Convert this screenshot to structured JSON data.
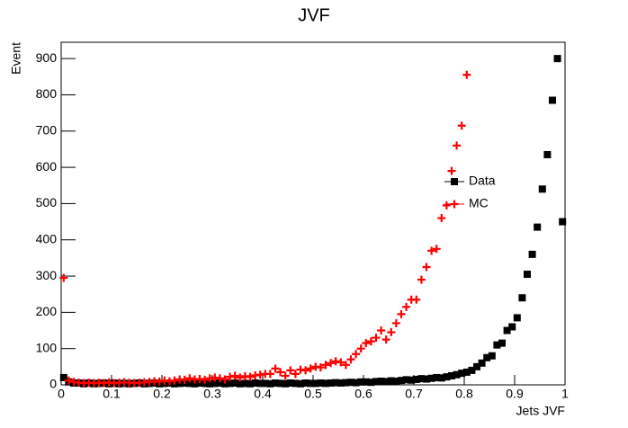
{
  "chart_data": {
    "type": "scatter",
    "title": "JVF",
    "x_label": "Jets JVF",
    "y_label": "Event",
    "xlim": [
      0,
      1
    ],
    "ylim": [
      0,
      945
    ],
    "xticks": [
      0,
      0.1,
      0.2,
      0.3,
      0.4,
      0.5,
      0.6,
      0.7,
      0.8,
      0.9,
      1
    ],
    "yticks": [
      0,
      100,
      200,
      300,
      400,
      500,
      600,
      700,
      800,
      900
    ],
    "x": [
      0.005,
      0.015,
      0.025,
      0.035,
      0.045,
      0.055,
      0.065,
      0.075,
      0.085,
      0.095,
      0.105,
      0.115,
      0.125,
      0.135,
      0.145,
      0.155,
      0.165,
      0.175,
      0.185,
      0.195,
      0.205,
      0.215,
      0.225,
      0.235,
      0.245,
      0.255,
      0.265,
      0.275,
      0.285,
      0.295,
      0.305,
      0.315,
      0.325,
      0.335,
      0.345,
      0.355,
      0.365,
      0.375,
      0.385,
      0.395,
      0.405,
      0.415,
      0.425,
      0.435,
      0.445,
      0.455,
      0.465,
      0.475,
      0.485,
      0.495,
      0.505,
      0.515,
      0.525,
      0.535,
      0.545,
      0.555,
      0.565,
      0.575,
      0.585,
      0.595,
      0.605,
      0.615,
      0.625,
      0.635,
      0.645,
      0.655,
      0.665,
      0.675,
      0.685,
      0.695,
      0.705,
      0.715,
      0.725,
      0.735,
      0.745,
      0.755,
      0.765,
      0.775,
      0.785,
      0.795,
      0.805,
      0.815,
      0.825,
      0.835,
      0.845,
      0.855,
      0.865,
      0.875,
      0.885,
      0.895,
      0.905,
      0.915,
      0.925,
      0.935,
      0.945,
      0.955,
      0.965,
      0.975,
      0.985,
      0.995
    ],
    "series": [
      {
        "name": "Data",
        "color": "#000000",
        "marker": "square",
        "values": [
          20,
          8,
          5,
          5,
          3,
          5,
          3,
          4,
          5,
          3,
          5,
          3,
          4,
          3,
          4,
          5,
          3,
          4,
          5,
          3,
          4,
          5,
          3,
          4,
          5,
          4,
          3,
          5,
          4,
          3,
          4,
          5,
          3,
          4,
          5,
          3,
          4,
          3,
          5,
          4,
          4,
          3,
          5,
          4,
          3,
          5,
          4,
          3,
          5,
          4,
          4,
          5,
          4,
          5,
          6,
          5,
          6,
          7,
          6,
          8,
          8,
          7,
          9,
          10,
          9,
          11,
          10,
          12,
          14,
          13,
          15,
          17,
          16,
          18,
          20,
          19,
          22,
          25,
          28,
          32,
          35,
          40,
          50,
          60,
          75,
          80,
          110,
          115,
          150,
          160,
          185,
          240,
          305,
          360,
          435,
          540,
          635,
          785,
          900,
          450
        ]
      },
      {
        "name": "MC",
        "color": "#ff0000",
        "marker": "cross",
        "values": [
          295,
          12,
          8,
          6,
          5,
          6,
          5,
          6,
          5,
          7,
          5,
          6,
          7,
          6,
          5,
          6,
          7,
          8,
          10,
          9,
          12,
          10,
          12,
          15,
          14,
          18,
          15,
          16,
          14,
          18,
          20,
          18,
          15,
          22,
          25,
          20,
          24,
          22,
          26,
          28,
          30,
          30,
          45,
          35,
          25,
          40,
          30,
          42,
          40,
          45,
          50,
          48,
          55,
          60,
          65,
          62,
          55,
          70,
          85,
          100,
          115,
          120,
          130,
          150,
          125,
          145,
          170,
          195,
          215,
          235,
          235,
          290,
          325,
          370,
          375,
          460,
          495,
          590,
          660,
          715,
          855,
          null,
          null,
          null,
          null,
          null,
          null,
          null,
          null,
          null,
          null,
          null,
          null,
          null,
          null,
          null,
          null,
          null,
          null,
          null
        ]
      }
    ]
  }
}
